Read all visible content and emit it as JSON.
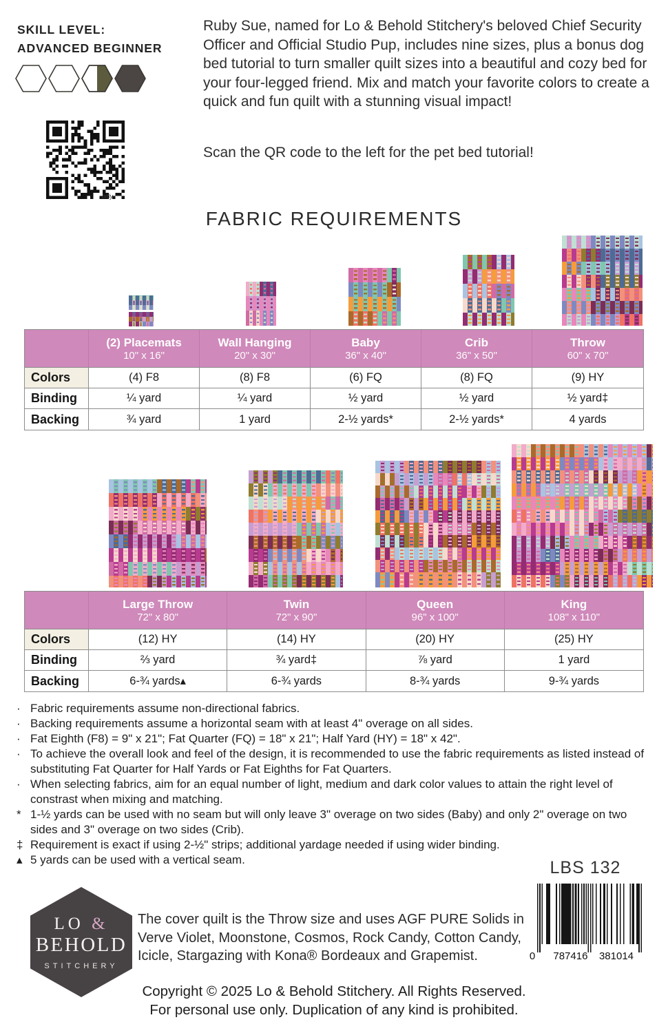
{
  "colors": {
    "header_pink": "#cf89ba",
    "label_cream": "#f3efe2",
    "table_border": "#8c8c8c",
    "hex_outline": "#3b3834",
    "hex_olive": "#5c5b3d",
    "hex_dark": "#4b4644",
    "logo_bg": "#474243",
    "logo_amp_pink": "#d5a8c4",
    "quilt_palette": [
      "#e887bb",
      "#f2abc9",
      "#b83b90",
      "#942c72",
      "#f59c3c",
      "#ef7364",
      "#f2917c",
      "#a9c3e2",
      "#7f89c1",
      "#4e6b94",
      "#7fc7ae",
      "#bfe0d2",
      "#c79ed0",
      "#aa6a2b",
      "#8f7c2f",
      "#f6d9cb",
      "#7c2d55",
      "#d16ba5"
    ]
  },
  "skill": {
    "line1": "SKILL LEVEL:",
    "line2": "ADVANCED BEGINNER",
    "hexagons": [
      "empty",
      "empty",
      "half",
      "full"
    ]
  },
  "qr": {
    "caption": "bitly"
  },
  "intro": {
    "paragraph": "Ruby Sue, named for Lo & Behold Stitchery's beloved Chief Security Officer and Official Studio Pup, includes nine sizes, plus a bonus dog bed tutorial to turn smaller quilt sizes into a beautiful and cozy bed for your four-legged friend. Mix and match your favorite colors to create a quick and fun quilt with a stunning visual impact!",
    "scan_note": "Scan the QR code to the left for the pet bed tutorial!"
  },
  "section_title": "FABRIC REQUIREMENTS",
  "size_tables": [
    {
      "columns": [
        {
          "name": "(2) Placemats",
          "size": "10\" x 16\""
        },
        {
          "name": "Wall Hanging",
          "size": "20\" x 30\""
        },
        {
          "name": "Baby",
          "size": "36\" x 40\""
        },
        {
          "name": "Crib",
          "size": "36\" x 50\""
        },
        {
          "name": "Throw",
          "size": "60\" x 70\""
        }
      ],
      "rows": [
        {
          "label": "Colors",
          "values": [
            "(4) F8",
            "(8) F8",
            "(6) FQ",
            "(8) FQ",
            "(9) HY"
          ]
        },
        {
          "label": "Binding",
          "values": [
            "¼ yard",
            "¼ yard",
            "½ yard",
            "½ yard",
            "½ yard‡"
          ]
        },
        {
          "label": "Backing",
          "values": [
            "¾ yard",
            "1 yard",
            "2-½ yards*",
            "2-½ yards*",
            "4 yards"
          ]
        }
      ]
    },
    {
      "columns": [
        {
          "name": "Large Throw",
          "size": "72\" x 80\""
        },
        {
          "name": "Twin",
          "size": "72\" x 90\""
        },
        {
          "name": "Queen",
          "size": "96\" x 100\""
        },
        {
          "name": "King",
          "size": "108\" x 110\""
        }
      ],
      "rows": [
        {
          "label": "Colors",
          "values": [
            "(12) HY",
            "(14) HY",
            "(20) HY",
            "(25) HY"
          ]
        },
        {
          "label": "Binding",
          "values": [
            "⅔ yard",
            "¾ yard‡",
            "⅞ yard",
            "1 yard"
          ]
        },
        {
          "label": "Backing",
          "values": [
            "6-¾ yards▴",
            "6-¾ yards",
            "8-¾ yards",
            "9-¾ yards"
          ]
        }
      ]
    }
  ],
  "footnotes": [
    {
      "marker": "·",
      "text": "Fabric requirements assume non-directional fabrics."
    },
    {
      "marker": "·",
      "text": "Backing requirements assume a horizontal seam with at least 4\" overage on all sides."
    },
    {
      "marker": "·",
      "text": "Fat Eighth (F8) = 9\" x 21\"; Fat Quarter (FQ) = 18\" x 21\"; Half Yard (HY) = 18\" x 42\"."
    },
    {
      "marker": "·",
      "text": "To achieve the overall look and feel of the design, it is recommended to use the fabric requirements as listed instead of substituting Fat Quarter for Half Yards or Fat Eighths for Fat Quarters."
    },
    {
      "marker": "·",
      "text": "When selecting fabrics, aim for an equal number of light, medium and dark color values to attain the right level of constrast when mixing and matching."
    },
    {
      "marker": "*",
      "text": "1-½ yards can be used with no seam but will only leave 3\" overage on two sides (Baby) and only 2\" overage on two sides and 3\" overage on two sides (Crib)."
    },
    {
      "marker": "‡",
      "text": "Requirement is exact if using 2-½\" strips; additional yardage needed if using wider binding."
    },
    {
      "marker": "▴",
      "text": "5 yards can be used with a vertical seam."
    }
  ],
  "pattern_number": "LBS 132",
  "footer": {
    "logo": {
      "lo": "LO",
      "amp": "&",
      "line2": "BEHOLD",
      "line3": "STITCHERY"
    },
    "cover_note": "The cover quilt is the Throw size and uses AGF PURE Solids in Verve Violet, Moonstone, Cosmos, Rock Candy, Cotton Candy, Icicle, Stargazing with Kona® Bordeaux and Grapemist.",
    "barcode_digits": [
      "0",
      "787416",
      "381014"
    ],
    "copyright_line1": "Copyright © 2025 Lo & Behold Stitchery. All Rights Reserved.",
    "copyright_line2": "For personal use only. Duplication of any kind is prohibited."
  }
}
